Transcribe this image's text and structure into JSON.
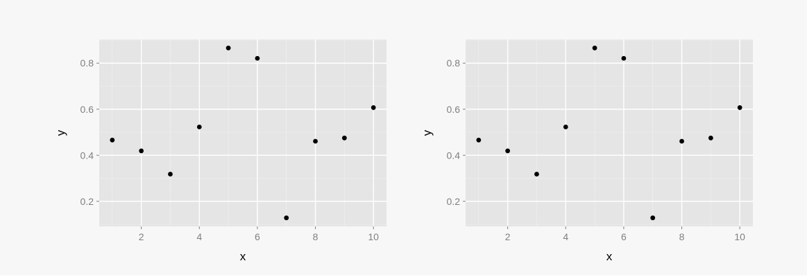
{
  "colors": {
    "figure_background": "#f7f7f7",
    "panel_background": "#e5e5e5",
    "grid_major": "#ffffff",
    "grid_minor": "#f2f2f2",
    "tick_label": "#7f7f7f",
    "point": "#000000"
  },
  "chart_data": [
    {
      "type": "scatter",
      "xlabel": "x",
      "ylabel": "y",
      "x": [
        1,
        2,
        3,
        4,
        5,
        6,
        7,
        8,
        9,
        10
      ],
      "y": [
        0.466,
        0.419,
        0.318,
        0.523,
        0.866,
        0.821,
        0.128,
        0.461,
        0.475,
        0.607
      ],
      "xlim": [
        0.55,
        10.45
      ],
      "ylim": [
        0.091,
        0.903
      ],
      "xticks": [
        2,
        4,
        6,
        8,
        10
      ],
      "yticks": [
        0.2,
        0.4,
        0.6,
        0.8
      ],
      "xtick_labels": [
        "2",
        "4",
        "6",
        "8",
        "10"
      ],
      "ytick_labels": [
        "0.2",
        "0.4",
        "0.6",
        "0.8"
      ],
      "grid": true
    },
    {
      "type": "scatter",
      "xlabel": "x",
      "ylabel": "y",
      "x": [
        1,
        2,
        3,
        4,
        5,
        6,
        7,
        8,
        9,
        10
      ],
      "y": [
        0.466,
        0.419,
        0.318,
        0.523,
        0.866,
        0.821,
        0.128,
        0.461,
        0.475,
        0.607
      ],
      "xlim": [
        0.55,
        10.45
      ],
      "ylim": [
        0.091,
        0.903
      ],
      "xticks": [
        2,
        4,
        6,
        8,
        10
      ],
      "yticks": [
        0.2,
        0.4,
        0.6,
        0.8
      ],
      "xtick_labels": [
        "2",
        "4",
        "6",
        "8",
        "10"
      ],
      "ytick_labels": [
        "0.2",
        "0.4",
        "0.6",
        "0.8"
      ],
      "grid": true
    }
  ]
}
